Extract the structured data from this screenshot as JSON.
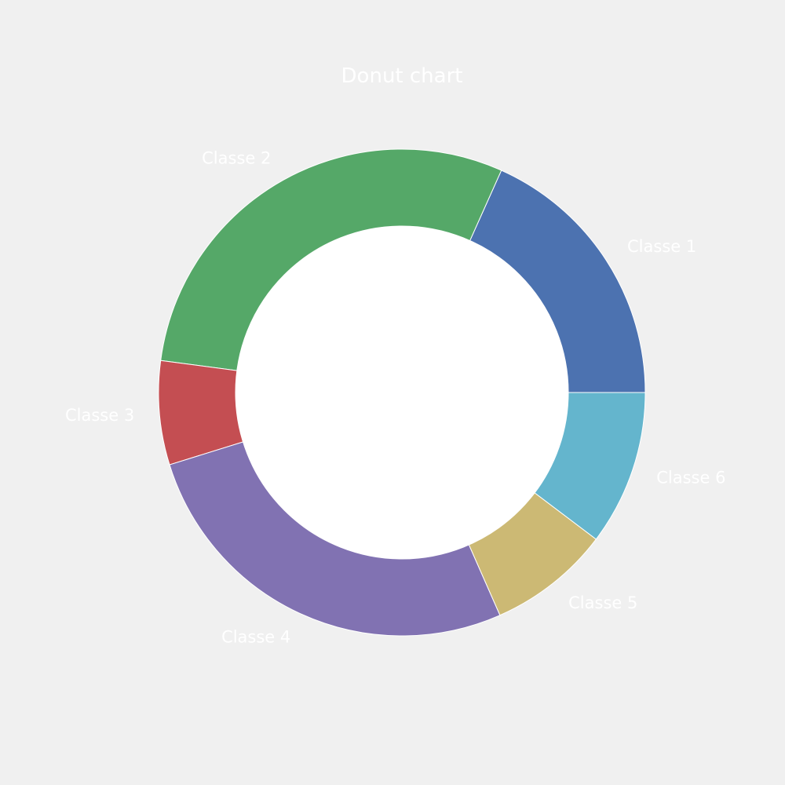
{
  "chart_data": {
    "type": "pie",
    "title": "Donut chart",
    "donut": true,
    "start": "right, counter-clockwise",
    "categories": [
      "Classe 1",
      "Classe 2",
      "Classe 3",
      "Classe 4",
      "Classe 5",
      "Classe 6"
    ],
    "values": [
      18.3,
      29.6,
      6.9,
      26.8,
      8.1,
      10.3
    ],
    "colors": [
      "#4c72b0",
      "#55a868",
      "#c44e52",
      "#8172b2",
      "#ccb974",
      "#64b5cd"
    ],
    "center_color": "#ffffff",
    "background": "#f0f0f0",
    "legend": "none"
  }
}
